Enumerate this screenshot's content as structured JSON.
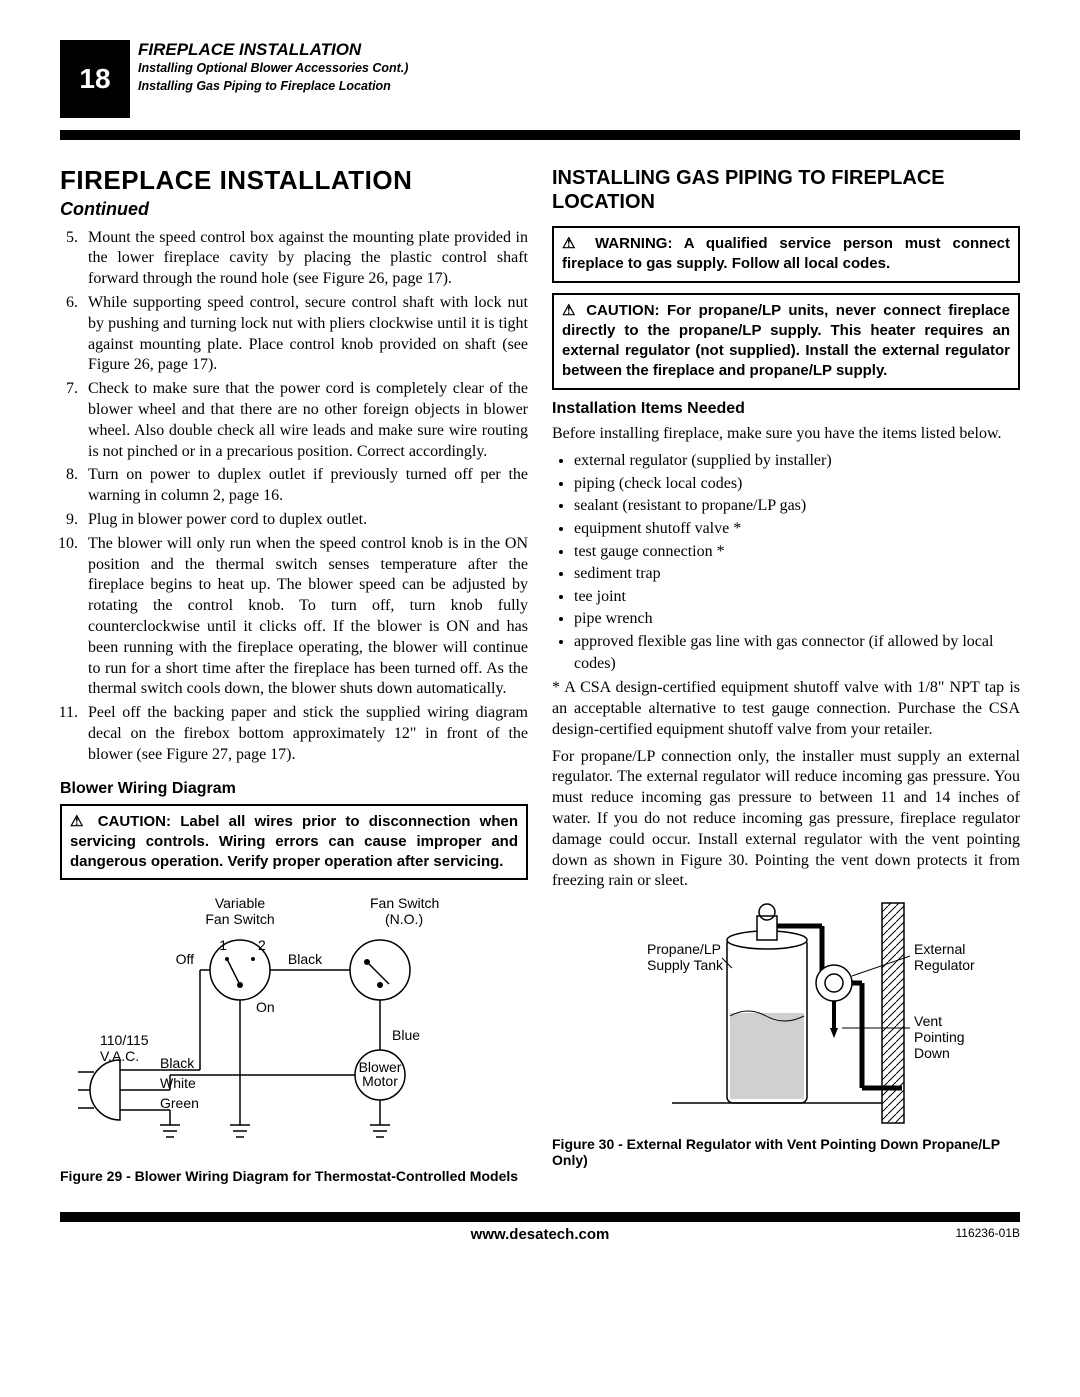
{
  "header": {
    "page_number": "18",
    "main": "FIREPLACE INSTALLATION",
    "sub1": "Installing Optional Blower Accessories Cont.)",
    "sub2": "Installing Gas Piping to Fireplace Location"
  },
  "left": {
    "title": "FIREPLACE INSTALLATION",
    "continued": "Continued",
    "steps_start": 5,
    "steps": [
      "Mount the speed control box against the mounting plate provided in the lower fireplace cavity by placing the plastic control shaft forward through the round hole (see Figure 26, page 17).",
      "While supporting speed control, secure control shaft with lock nut by pushing and turning lock nut with pliers clockwise until it is tight against mounting plate. Place control knob provided on shaft (see Figure 26, page 17).",
      "Check to make sure that the power cord is completely clear of the blower wheel and that there are no other foreign objects in blower wheel. Also double check all wire leads and make sure wire routing is not pinched or in a precarious position. Correct accordingly.",
      "Turn on power to duplex outlet if previously turned off per the warning in column 2, page 16.",
      "Plug in blower power cord to duplex outlet.",
      "The blower will only run when the speed control knob is in the ON position and the thermal switch senses temperature after the fireplace begins to heat up. The blower speed can be adjusted by rotating the control knob. To turn off, turn knob fully counterclockwise until it clicks off. If the blower is ON and has been running with the fireplace operating, the blower will continue to run for a short time after the fireplace has been turned off. As the thermal switch cools down, the blower shuts down automatically.",
      "Peel off the backing paper and stick the supplied wiring diagram decal on the firebox bottom approximately 12\" in front of the blower (see Figure 27, page 17)."
    ],
    "wiring_title": "Blower Wiring Diagram",
    "caution_box": " CAUTION: Label all wires prior to disconnection when servicing controls. Wiring errors can cause improper and dangerous operation. Verify proper operation after servicing.",
    "fig29": {
      "labels": {
        "variable_fan_switch": "Variable\nFan Switch",
        "fan_switch_no": "Fan Switch\n(N.O.)",
        "off": "Off",
        "on": "On",
        "black1": "Black",
        "black2": "Black",
        "blue": "Blue",
        "white": "White",
        "green": "Green",
        "vac": "110/115\nV.A.C.",
        "blower_motor": "Blower\nMotor",
        "one": "1",
        "two": "2"
      },
      "caption": "Figure 29 - Blower Wiring Diagram for Thermostat-Controlled Models"
    }
  },
  "right": {
    "title": "INSTALLING GAS PIPING TO FIREPLACE LOCATION",
    "warning_box": " WARNING: A qualified service person must connect fireplace to gas supply. Follow all local codes.",
    "caution_box": " CAUTION: For propane/LP units, never connect fireplace directly to the propane/LP supply. This heater requires an external regulator (not supplied). Install the external regulator between the fireplace and propane/LP supply.",
    "items_title": "Installation Items Needed",
    "items_intro": "Before installing fireplace, make sure you have the items listed below.",
    "items": [
      "external regulator (supplied by installer)",
      "piping (check local codes)",
      "sealant (resistant to propane/LP gas)",
      "equipment shutoff valve *",
      "test gauge connection *",
      "sediment trap",
      "tee joint",
      "pipe wrench",
      "approved flexible gas line with gas connector (if allowed by local codes)"
    ],
    "footnote": "* A CSA design-certified equipment shutoff valve with 1/8\" NPT tap is an acceptable alternative to test gauge connection. Purchase the CSA design-certified equipment shutoff valve from your retailer.",
    "paragraph": "For propane/LP connection only, the installer must supply an external regulator. The external regulator will reduce incoming gas pressure. You must reduce incoming gas pressure to between 11 and 14 inches of water. If you do not reduce incoming gas pressure, fireplace regulator damage could occur. Install external regulator with the vent pointing down as shown in Figure 30. Pointing the vent down protects it from freezing rain or sleet.",
    "fig30": {
      "labels": {
        "tank": "Propane/LP\nSupply Tank",
        "regulator": "External\nRegulator",
        "vent": "Vent\nPointing\nDown"
      },
      "caption": "Figure 30 - External Regulator with Vent Pointing Down Propane/LP Only)"
    }
  },
  "footer": {
    "url": "www.desatech.com",
    "code": "116236-01B"
  }
}
